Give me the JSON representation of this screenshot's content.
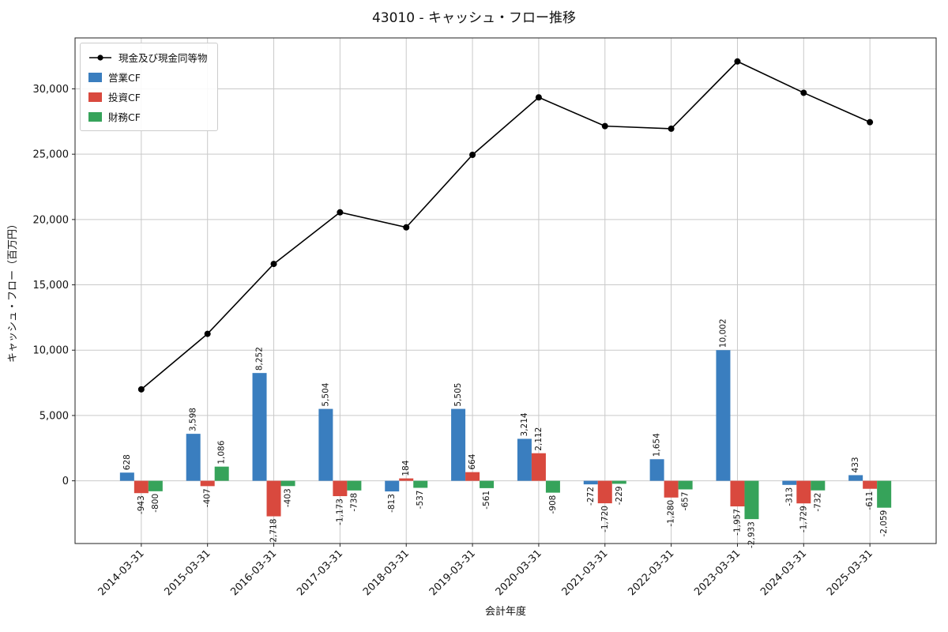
{
  "chart_data": {
    "type": "bar",
    "title": "43010 - キャッシュ・フロー推移",
    "xlabel": "会計年度",
    "ylabel": "キャッシュ・フロー（百万円）",
    "categories": [
      "2014-03-31",
      "2015-03-31",
      "2016-03-31",
      "2017-03-31",
      "2018-03-31",
      "2019-03-31",
      "2020-03-31",
      "2021-03-31",
      "2022-03-31",
      "2023-03-31",
      "2024-03-31",
      "2025-03-31"
    ],
    "series": [
      {
        "name": "営業CF",
        "color": "#3a7ebf",
        "values": [
          628,
          3598,
          8252,
          5504,
          -813,
          5505,
          3214,
          -272,
          1654,
          10002,
          -313,
          433
        ]
      },
      {
        "name": "投資CF",
        "color": "#d9493e",
        "values": [
          -943,
          -407,
          -2718,
          -1173,
          184,
          664,
          2112,
          -1720,
          -1280,
          -1957,
          -1729,
          -611
        ]
      },
      {
        "name": "財務CF",
        "color": "#36a35a",
        "values": [
          -800,
          1086,
          -403,
          -738,
          -537,
          -561,
          -908,
          -229,
          -657,
          -2933,
          -732,
          -2059
        ]
      }
    ],
    "line": {
      "name": "現金及び現金同等物",
      "color": "#000000",
      "values": [
        7000,
        11250,
        16600,
        20550,
        19400,
        24950,
        29350,
        27150,
        26950,
        32100,
        29700,
        27450
      ]
    },
    "ylim": [
      -4800,
      33900
    ],
    "yticks": [
      0,
      5000,
      10000,
      15000,
      20000,
      25000,
      30000
    ],
    "grid": true,
    "legend_position": "upper left"
  }
}
